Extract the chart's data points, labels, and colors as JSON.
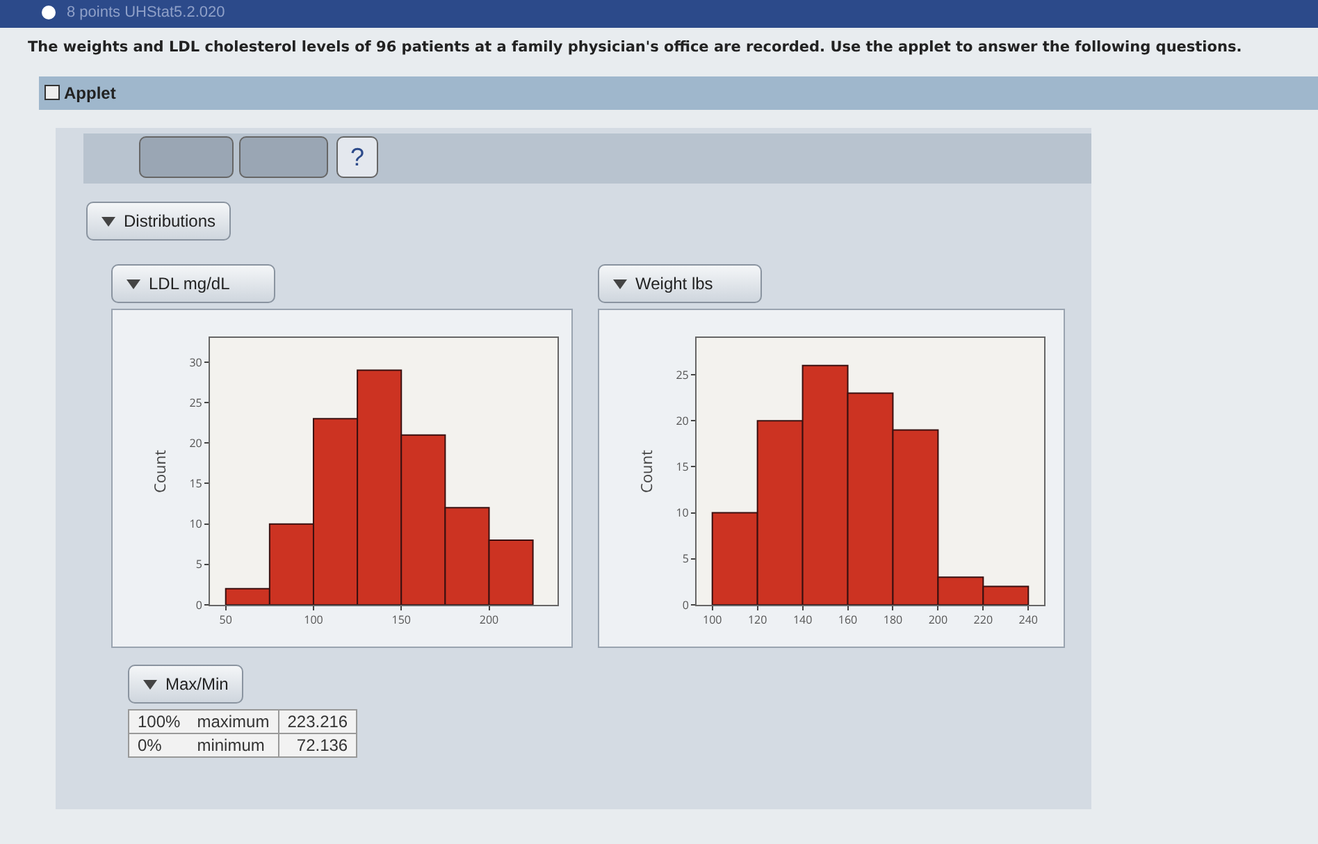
{
  "chart_data": [
    {
      "type": "other",
      "title": "The weights and LDL cholesterol levels of 96 patients at a family physician's office are recorded. Use the applet to answer the following questions.",
      "annotations": [
        "8 points UHStat5.2.020",
        "Applet",
        "?",
        "Distributions"
      ]
    },
    {
      "type": "histogram",
      "title": "LDL mg/dL",
      "ylabel": "Count",
      "bins": [
        50,
        75,
        100,
        125,
        150,
        175,
        200,
        225
      ],
      "values": [
        2,
        10,
        23,
        29,
        21,
        12,
        8
      ],
      "color": "#cc3322",
      "xlim": [
        41,
        239
      ],
      "xticks": [
        50,
        100,
        150,
        200
      ],
      "ylim": [
        0,
        33
      ],
      "yticks": [
        0,
        5,
        10,
        15,
        20,
        25,
        30
      ],
      "grid": false
    },
    {
      "type": "histogram",
      "title": "Weight lbs",
      "ylabel": "Count",
      "bins": [
        100,
        120,
        140,
        160,
        180,
        200,
        220,
        240
      ],
      "values": [
        10,
        20,
        26,
        23,
        19,
        3,
        2
      ],
      "color": "#cc3322",
      "xlim": [
        93,
        247
      ],
      "xticks": [
        100,
        120,
        140,
        160,
        180,
        200,
        220,
        240
      ],
      "ylim": [
        0,
        29
      ],
      "yticks": [
        0,
        5,
        10,
        15,
        20,
        25
      ],
      "grid": false
    },
    {
      "type": "other",
      "title": "Max/Min",
      "annotations": [
        "100%",
        "maximum",
        "223.216",
        "0%",
        "minimum",
        "72.136"
      ]
    }
  ]
}
